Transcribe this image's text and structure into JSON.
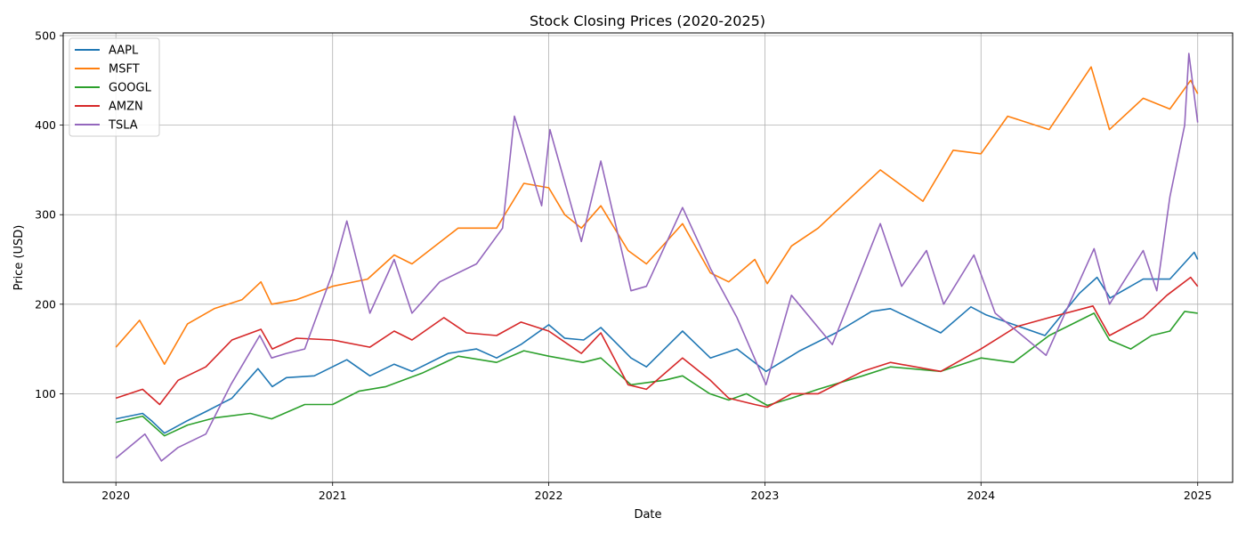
{
  "chart_data": {
    "type": "line",
    "title": "Stock Closing Prices (2020-2025)",
    "xlabel": "Date",
    "ylabel": "Price (USD)",
    "x_tick_labels": [
      "2020",
      "2021",
      "2022",
      "2023",
      "2024",
      "2025"
    ],
    "y_tick_labels": [
      "100",
      "200",
      "300",
      "400",
      "500"
    ],
    "x_ticks": [
      "2020-01-01",
      "2021-01-01",
      "2022-01-01",
      "2023-01-01",
      "2024-01-01",
      "2025-01-01"
    ],
    "y_ticks": [
      100,
      200,
      300,
      400,
      500
    ],
    "xlim": [
      "2019-10-04",
      "2025-03-01"
    ],
    "ylim": [
      1,
      503
    ],
    "grid": true,
    "legend_position": "upper left",
    "series": [
      {
        "name": "AAPL",
        "color": "#1f77b4",
        "points": [
          [
            "2020-01-01",
            72
          ],
          [
            "2020-02-15",
            78
          ],
          [
            "2020-03-01",
            70
          ],
          [
            "2020-03-23",
            56
          ],
          [
            "2020-05-01",
            70
          ],
          [
            "2020-06-01",
            80
          ],
          [
            "2020-07-15",
            95
          ],
          [
            "2020-08-28",
            128
          ],
          [
            "2020-09-21",
            108
          ],
          [
            "2020-10-15",
            118
          ],
          [
            "2020-12-01",
            120
          ],
          [
            "2021-01-25",
            138
          ],
          [
            "2021-03-05",
            120
          ],
          [
            "2021-04-15",
            133
          ],
          [
            "2021-05-15",
            125
          ],
          [
            "2021-07-15",
            145
          ],
          [
            "2021-09-01",
            150
          ],
          [
            "2021-10-05",
            140
          ],
          [
            "2021-11-15",
            155
          ],
          [
            "2022-01-01",
            177
          ],
          [
            "2022-01-28",
            162
          ],
          [
            "2022-03-01",
            160
          ],
          [
            "2022-03-30",
            174
          ],
          [
            "2022-05-20",
            140
          ],
          [
            "2022-06-15",
            130
          ],
          [
            "2022-08-15",
            170
          ],
          [
            "2022-10-01",
            140
          ],
          [
            "2022-11-15",
            150
          ],
          [
            "2023-01-03",
            125
          ],
          [
            "2023-03-01",
            148
          ],
          [
            "2023-05-01",
            168
          ],
          [
            "2023-06-30",
            192
          ],
          [
            "2023-08-01",
            195
          ],
          [
            "2023-10-25",
            168
          ],
          [
            "2023-12-15",
            197
          ],
          [
            "2024-01-10",
            188
          ],
          [
            "2024-04-18",
            165
          ],
          [
            "2024-06-15",
            212
          ],
          [
            "2024-07-15",
            230
          ],
          [
            "2024-08-06",
            207
          ],
          [
            "2024-10-01",
            228
          ],
          [
            "2024-11-15",
            228
          ],
          [
            "2024-12-26",
            258
          ],
          [
            "2025-01-01",
            250
          ]
        ]
      },
      {
        "name": "MSFT",
        "color": "#ff7f0e",
        "points": [
          [
            "2020-01-01",
            152
          ],
          [
            "2020-02-10",
            182
          ],
          [
            "2020-03-23",
            133
          ],
          [
            "2020-05-01",
            178
          ],
          [
            "2020-06-15",
            195
          ],
          [
            "2020-08-01",
            205
          ],
          [
            "2020-09-02",
            225
          ],
          [
            "2020-09-20",
            200
          ],
          [
            "2020-11-01",
            205
          ],
          [
            "2021-01-01",
            220
          ],
          [
            "2021-03-01",
            228
          ],
          [
            "2021-04-15",
            255
          ],
          [
            "2021-05-15",
            245
          ],
          [
            "2021-08-01",
            285
          ],
          [
            "2021-10-05",
            285
          ],
          [
            "2021-11-20",
            335
          ],
          [
            "2022-01-01",
            330
          ],
          [
            "2022-01-28",
            300
          ],
          [
            "2022-02-25",
            285
          ],
          [
            "2022-03-30",
            310
          ],
          [
            "2022-05-15",
            260
          ],
          [
            "2022-06-15",
            245
          ],
          [
            "2022-08-15",
            290
          ],
          [
            "2022-10-01",
            235
          ],
          [
            "2022-11-01",
            225
          ],
          [
            "2022-12-15",
            250
          ],
          [
            "2023-01-05",
            223
          ],
          [
            "2023-02-15",
            265
          ],
          [
            "2023-04-01",
            285
          ],
          [
            "2023-07-15",
            350
          ],
          [
            "2023-09-25",
            315
          ],
          [
            "2023-11-15",
            372
          ],
          [
            "2024-01-01",
            368
          ],
          [
            "2024-02-15",
            410
          ],
          [
            "2024-04-25",
            395
          ],
          [
            "2024-07-05",
            465
          ],
          [
            "2024-08-05",
            395
          ],
          [
            "2024-10-01",
            430
          ],
          [
            "2024-11-15",
            418
          ],
          [
            "2024-12-20",
            450
          ],
          [
            "2025-01-01",
            435
          ]
        ]
      },
      {
        "name": "GOOGL",
        "color": "#2ca02c",
        "points": [
          [
            "2020-01-01",
            68
          ],
          [
            "2020-02-15",
            75
          ],
          [
            "2020-03-23",
            53
          ],
          [
            "2020-05-01",
            65
          ],
          [
            "2020-06-15",
            73
          ],
          [
            "2020-08-15",
            78
          ],
          [
            "2020-09-20",
            72
          ],
          [
            "2020-11-15",
            88
          ],
          [
            "2021-01-01",
            88
          ],
          [
            "2021-02-15",
            103
          ],
          [
            "2021-04-01",
            108
          ],
          [
            "2021-06-01",
            123
          ],
          [
            "2021-08-01",
            142
          ],
          [
            "2021-10-05",
            135
          ],
          [
            "2021-11-20",
            148
          ],
          [
            "2022-01-01",
            142
          ],
          [
            "2022-02-28",
            135
          ],
          [
            "2022-03-30",
            140
          ],
          [
            "2022-05-20",
            110
          ],
          [
            "2022-07-15",
            115
          ],
          [
            "2022-08-15",
            120
          ],
          [
            "2022-09-30",
            100
          ],
          [
            "2022-11-01",
            93
          ],
          [
            "2022-12-01",
            100
          ],
          [
            "2023-01-05",
            87
          ],
          [
            "2023-02-15",
            95
          ],
          [
            "2023-04-01",
            105
          ],
          [
            "2023-06-15",
            120
          ],
          [
            "2023-08-01",
            130
          ],
          [
            "2023-10-25",
            125
          ],
          [
            "2024-01-01",
            140
          ],
          [
            "2024-02-25",
            135
          ],
          [
            "2024-04-25",
            165
          ],
          [
            "2024-07-10",
            190
          ],
          [
            "2024-08-05",
            160
          ],
          [
            "2024-09-10",
            150
          ],
          [
            "2024-10-15",
            165
          ],
          [
            "2024-11-15",
            170
          ],
          [
            "2024-12-10",
            192
          ],
          [
            "2025-01-01",
            190
          ]
        ]
      },
      {
        "name": "AMZN",
        "color": "#d62728",
        "points": [
          [
            "2020-01-01",
            95
          ],
          [
            "2020-02-15",
            105
          ],
          [
            "2020-03-15",
            88
          ],
          [
            "2020-04-15",
            115
          ],
          [
            "2020-06-01",
            130
          ],
          [
            "2020-07-15",
            160
          ],
          [
            "2020-09-02",
            172
          ],
          [
            "2020-09-21",
            150
          ],
          [
            "2020-11-01",
            162
          ],
          [
            "2021-01-01",
            160
          ],
          [
            "2021-03-05",
            152
          ],
          [
            "2021-04-15",
            170
          ],
          [
            "2021-05-15",
            160
          ],
          [
            "2021-07-08",
            185
          ],
          [
            "2021-08-15",
            168
          ],
          [
            "2021-10-05",
            165
          ],
          [
            "2021-11-15",
            180
          ],
          [
            "2022-01-01",
            170
          ],
          [
            "2022-02-25",
            145
          ],
          [
            "2022-03-30",
            168
          ],
          [
            "2022-05-15",
            110
          ],
          [
            "2022-06-15",
            105
          ],
          [
            "2022-08-15",
            140
          ],
          [
            "2022-10-01",
            115
          ],
          [
            "2022-11-01",
            95
          ],
          [
            "2022-12-15",
            88
          ],
          [
            "2023-01-05",
            85
          ],
          [
            "2023-02-15",
            100
          ],
          [
            "2023-04-01",
            100
          ],
          [
            "2023-06-15",
            125
          ],
          [
            "2023-08-01",
            135
          ],
          [
            "2023-10-25",
            125
          ],
          [
            "2024-01-01",
            150
          ],
          [
            "2024-03-01",
            175
          ],
          [
            "2024-04-25",
            185
          ],
          [
            "2024-07-08",
            198
          ],
          [
            "2024-08-05",
            165
          ],
          [
            "2024-10-01",
            185
          ],
          [
            "2024-11-10",
            210
          ],
          [
            "2024-12-20",
            230
          ],
          [
            "2025-01-01",
            220
          ]
        ]
      },
      {
        "name": "TSLA",
        "color": "#9467bd",
        "points": [
          [
            "2020-01-01",
            28
          ],
          [
            "2020-02-19",
            55
          ],
          [
            "2020-03-18",
            25
          ],
          [
            "2020-04-15",
            40
          ],
          [
            "2020-06-01",
            55
          ],
          [
            "2020-07-13",
            110
          ],
          [
            "2020-08-31",
            165
          ],
          [
            "2020-09-20",
            140
          ],
          [
            "2020-10-15",
            145
          ],
          [
            "2020-11-15",
            150
          ],
          [
            "2021-01-01",
            235
          ],
          [
            "2021-01-25",
            293
          ],
          [
            "2021-03-05",
            190
          ],
          [
            "2021-04-15",
            250
          ],
          [
            "2021-05-15",
            190
          ],
          [
            "2021-07-01",
            225
          ],
          [
            "2021-09-01",
            245
          ],
          [
            "2021-10-15",
            285
          ],
          [
            "2021-11-04",
            410
          ],
          [
            "2021-12-20",
            310
          ],
          [
            "2022-01-03",
            395
          ],
          [
            "2022-02-25",
            270
          ],
          [
            "2022-03-30",
            360
          ],
          [
            "2022-05-20",
            215
          ],
          [
            "2022-06-15",
            220
          ],
          [
            "2022-08-15",
            308
          ],
          [
            "2022-10-01",
            240
          ],
          [
            "2022-11-15",
            185
          ],
          [
            "2023-01-03",
            110
          ],
          [
            "2023-02-15",
            210
          ],
          [
            "2023-04-25",
            155
          ],
          [
            "2023-07-15",
            290
          ],
          [
            "2023-08-20",
            220
          ],
          [
            "2023-10-01",
            260
          ],
          [
            "2023-10-30",
            200
          ],
          [
            "2023-12-20",
            255
          ],
          [
            "2024-01-25",
            190
          ],
          [
            "2024-04-20",
            143
          ],
          [
            "2024-07-10",
            262
          ],
          [
            "2024-08-05",
            200
          ],
          [
            "2024-10-01",
            260
          ],
          [
            "2024-10-24",
            215
          ],
          [
            "2024-11-15",
            320
          ],
          [
            "2024-12-10",
            400
          ],
          [
            "2024-12-17",
            480
          ],
          [
            "2025-01-01",
            403
          ]
        ]
      }
    ]
  }
}
